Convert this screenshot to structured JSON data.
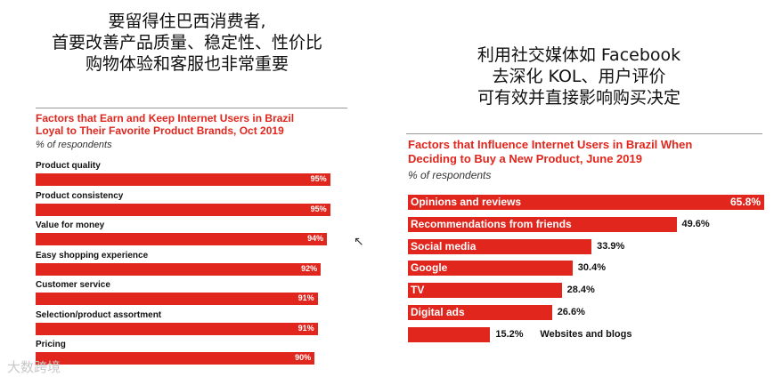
{
  "headlines": {
    "left": [
      "要留得住巴西消费者,",
      "首要改善产品质量、稳定性、性价比",
      "购物体验和客服也非常重要"
    ],
    "right": [
      "利用社交媒体如 Facebook",
      "去深化 KOL、用户评价",
      "可有效并直接影响购买决定"
    ]
  },
  "watermark": "大数跨境",
  "chart_data": [
    {
      "type": "bar",
      "orientation": "horizontal",
      "title": [
        "Factors that Earn and Keep Internet Users in Brazil",
        "Loyal to Their Favorite Product Brands, Oct 2019"
      ],
      "subtitle": "% of respondents",
      "categories": [
        "Product quality",
        "Product consistency",
        "Value for money",
        "Easy shopping experience",
        "Customer service",
        "Selection/product assortment",
        "Pricing"
      ],
      "values": [
        95,
        95,
        94,
        92,
        91,
        91,
        90
      ],
      "value_labels": [
        "95%",
        "95%",
        "94%",
        "92%",
        "91%",
        "91%",
        "90%"
      ],
      "xlim": [
        0,
        100
      ],
      "unit": "%"
    },
    {
      "type": "bar",
      "orientation": "horizontal",
      "title": [
        "Factors that Influence Internet Users in Brazil When",
        "Deciding to Buy a New Product, June 2019"
      ],
      "subtitle": "% of respondents",
      "categories": [
        "Opinions and reviews",
        "Recommendations from friends",
        "Social media",
        "Google",
        "TV",
        "Digital ads",
        "Websites and blogs"
      ],
      "values": [
        65.8,
        49.6,
        33.9,
        30.4,
        28.4,
        26.6,
        15.2
      ],
      "value_labels": [
        "65.8%",
        "49.6%",
        "33.9%",
        "30.4%",
        "28.4%",
        "26.6%",
        "15.2%"
      ],
      "xlim": [
        0,
        65.8
      ],
      "unit": "%"
    }
  ]
}
